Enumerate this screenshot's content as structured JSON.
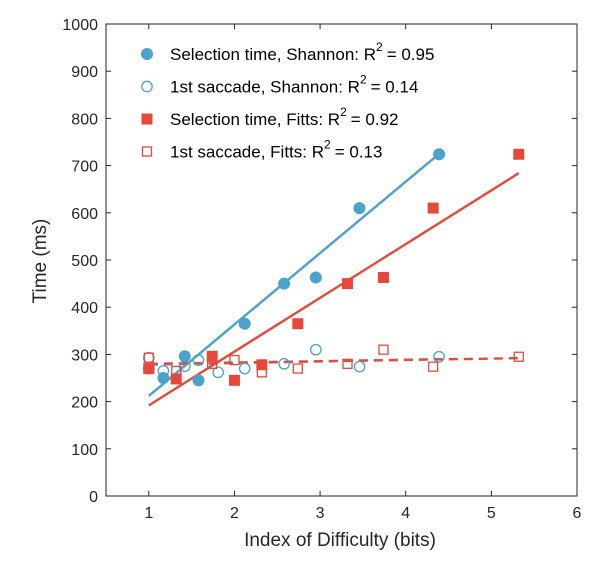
{
  "chart_data": {
    "type": "scatter",
    "xlabel": "Index of Difficulty (bits)",
    "ylabel": "Time (ms)",
    "xlim": [
      0.5,
      6
    ],
    "ylim": [
      0,
      1000
    ],
    "xticks": [
      "1",
      "2",
      "3",
      "4",
      "5",
      "6"
    ],
    "yticks": [
      "0",
      "100",
      "200",
      "300",
      "400",
      "500",
      "600",
      "700",
      "800",
      "900",
      "1000"
    ],
    "grid": false,
    "legend_position": "top-left",
    "series": [
      {
        "name": "Selection time, Shannon: R",
        "r2_text": "= 0.95",
        "marker": "filled-circle",
        "color": "#4AA3CA",
        "points": [
          [
            1.0,
            270
          ],
          [
            1.17,
            250
          ],
          [
            1.42,
            296
          ],
          [
            1.58,
            245
          ],
          [
            2.12,
            365
          ],
          [
            2.58,
            450
          ],
          [
            2.95,
            463
          ],
          [
            3.46,
            610
          ],
          [
            4.39,
            724
          ]
        ],
        "fit": {
          "x": [
            1.0,
            4.39
          ],
          "y": [
            212,
            725
          ],
          "style": "solid"
        }
      },
      {
        "name": "1st saccade, Shannon: R",
        "r2_text": "= 0.14",
        "marker": "open-circle",
        "color": "#4AA3CA",
        "points": [
          [
            1.0,
            293
          ],
          [
            1.17,
            265
          ],
          [
            1.42,
            275
          ],
          [
            1.58,
            288
          ],
          [
            1.81,
            262
          ],
          [
            2.12,
            270
          ],
          [
            2.58,
            280
          ],
          [
            2.95,
            310
          ],
          [
            3.46,
            274
          ],
          [
            4.39,
            295
          ]
        ],
        "fit": {
          "x": [
            1.0,
            4.39
          ],
          "y": [
            278,
            290
          ],
          "style": "dashed"
        }
      },
      {
        "name": "Selection time, Fitts: R",
        "r2_text": "= 0.92",
        "marker": "filled-square",
        "color": "#E8483B",
        "points": [
          [
            1.0,
            270
          ],
          [
            1.32,
            248
          ],
          [
            1.74,
            296
          ],
          [
            2.0,
            245
          ],
          [
            2.32,
            278
          ],
          [
            2.74,
            365
          ],
          [
            3.32,
            450
          ],
          [
            3.74,
            463
          ],
          [
            4.32,
            610
          ],
          [
            5.32,
            724
          ]
        ],
        "fit": {
          "x": [
            1.0,
            5.32
          ],
          "y": [
            192,
            684
          ],
          "style": "solid"
        }
      },
      {
        "name": "1st saccade, Fitts: R",
        "r2_text": "= 0.13",
        "marker": "open-square",
        "color": "#E8483B",
        "points": [
          [
            1.0,
            293
          ],
          [
            1.32,
            265
          ],
          [
            1.74,
            280
          ],
          [
            2.0,
            288
          ],
          [
            2.32,
            262
          ],
          [
            2.74,
            270
          ],
          [
            3.32,
            280
          ],
          [
            3.74,
            310
          ],
          [
            4.32,
            274
          ],
          [
            5.32,
            295
          ]
        ],
        "fit": {
          "x": [
            1.0,
            5.32
          ],
          "y": [
            280,
            292
          ],
          "style": "dashed"
        }
      }
    ]
  }
}
